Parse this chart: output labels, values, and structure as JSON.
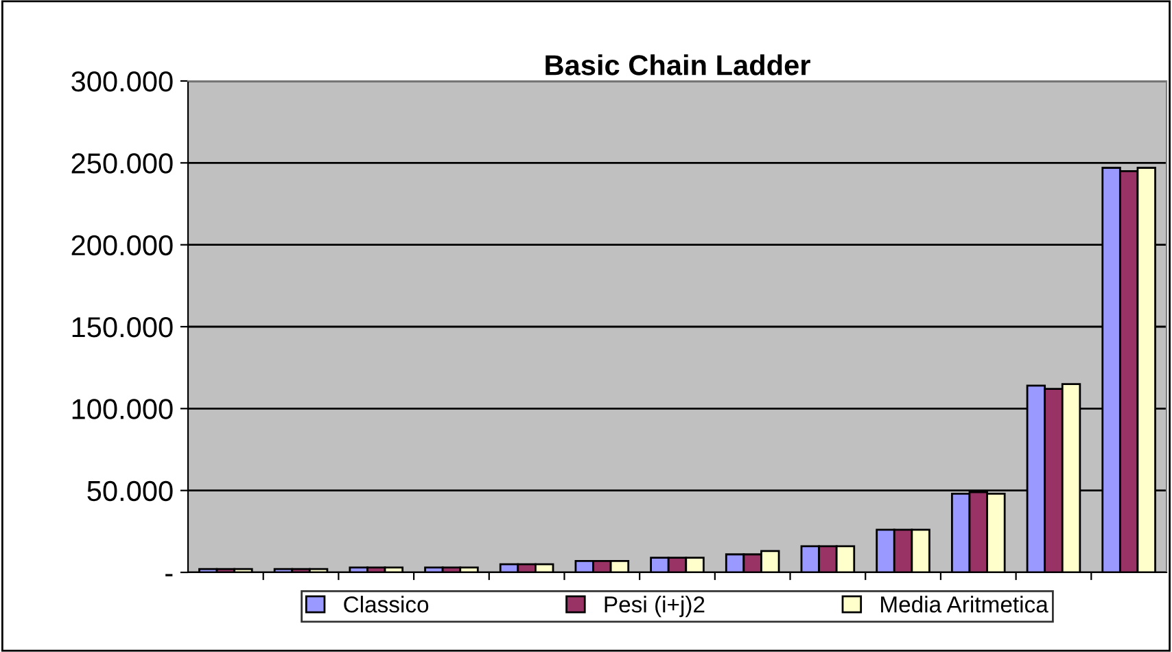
{
  "chart_data": {
    "type": "bar",
    "title": "Basic Chain Ladder",
    "categories": [
      null,
      null,
      null,
      null,
      null,
      null,
      null,
      null,
      null,
      null,
      null,
      null,
      null
    ],
    "series": [
      {
        "name": "Classico",
        "color": "#9999ff",
        "values": [
          2000,
          2000,
          3000,
          3000,
          5000,
          7000,
          9000,
          11000,
          16000,
          26000,
          48000,
          114000,
          247000
        ]
      },
      {
        "name": "Pesi (i+j)2",
        "color": "#993366",
        "values": [
          2000,
          2000,
          3000,
          3000,
          5000,
          7000,
          9000,
          11000,
          16000,
          26000,
          49000,
          112000,
          245000
        ]
      },
      {
        "name": "Media Aritmetica",
        "color": "#ffffcc",
        "values": [
          2000,
          2000,
          3000,
          3000,
          5000,
          7000,
          9000,
          13000,
          16000,
          26000,
          48000,
          115000,
          247000
        ]
      }
    ],
    "ylim": [
      0,
      300000
    ],
    "yticks": [
      {
        "value": 0,
        "label": "-"
      },
      {
        "value": 50000,
        "label": "50.000"
      },
      {
        "value": 100000,
        "label": "100.000"
      },
      {
        "value": 150000,
        "label": "150.000"
      },
      {
        "value": 200000,
        "label": "200.000"
      },
      {
        "value": 250000,
        "label": "250.000"
      },
      {
        "value": 300000,
        "label": "300.000"
      }
    ],
    "grid": "y",
    "legend": "bottom",
    "tick_labels": "y"
  }
}
